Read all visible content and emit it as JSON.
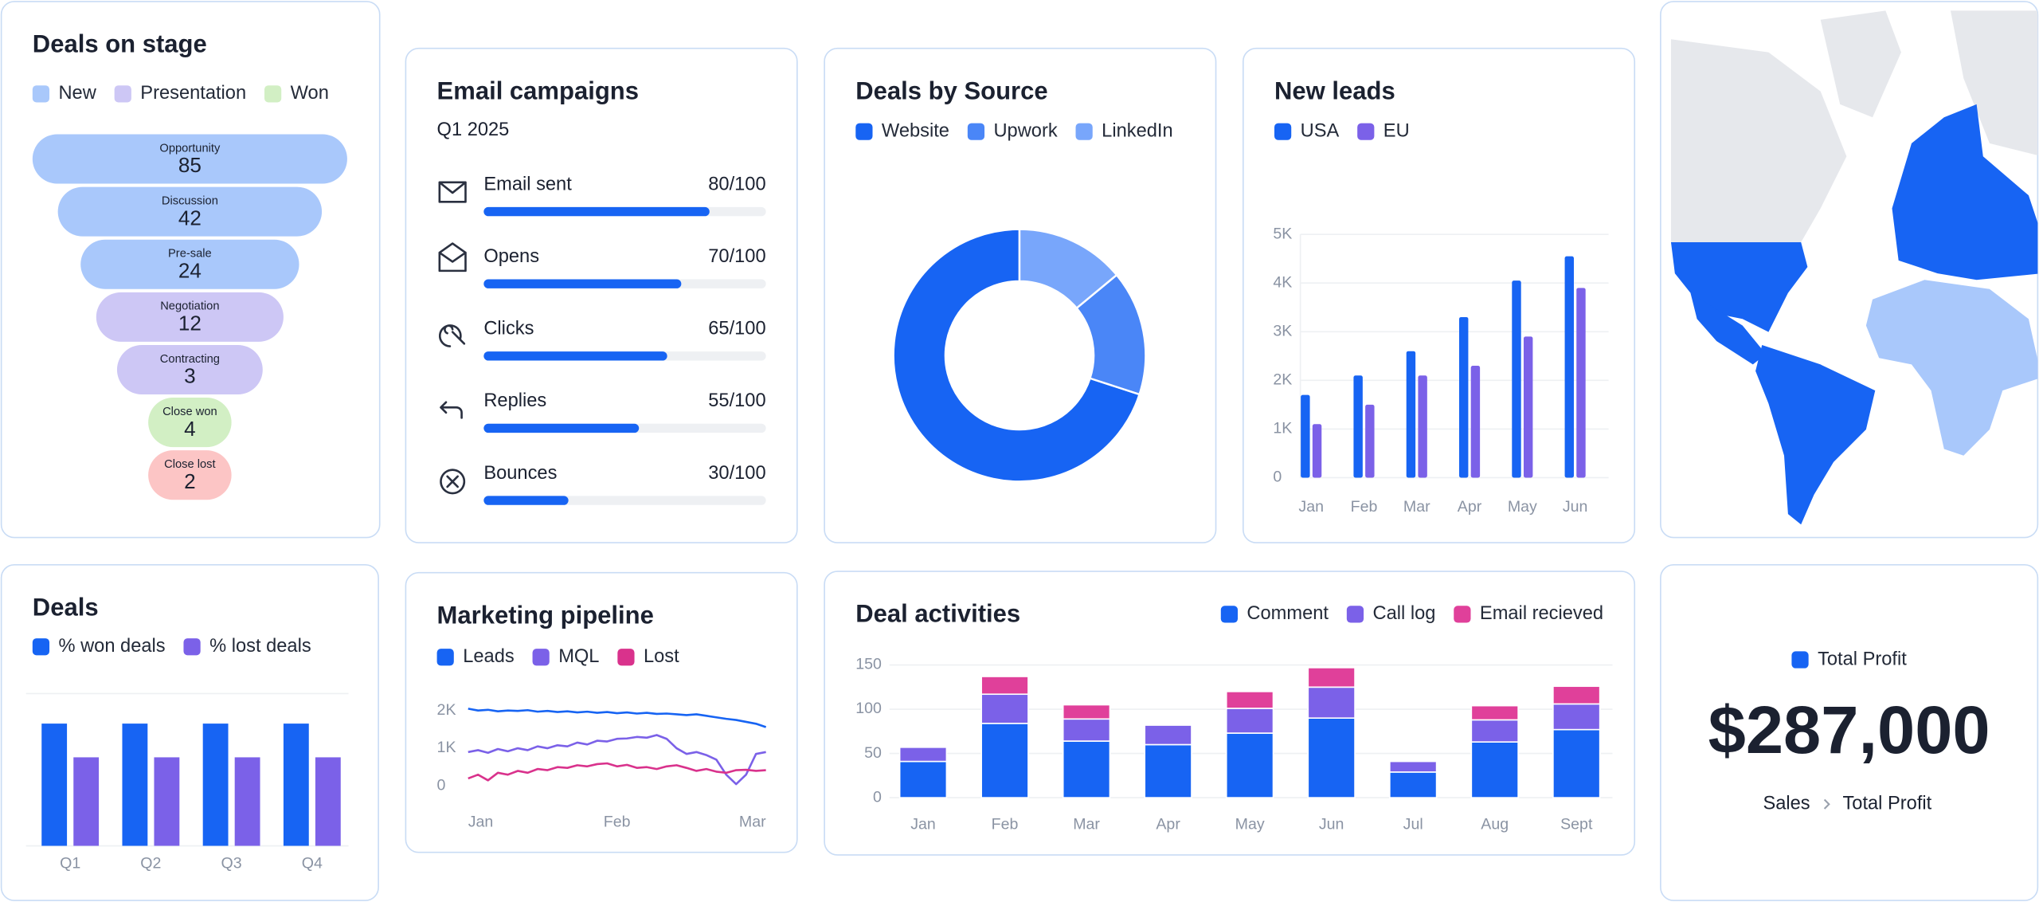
{
  "chart_data": [
    {
      "type": "funnel",
      "title": "Deals on stage",
      "legend": [
        {
          "name": "New",
          "color": "#a9c8fb"
        },
        {
          "name": "Presentation",
          "color": "#cdc7f5"
        },
        {
          "name": "Won",
          "color": "#d2efc4"
        }
      ],
      "categories": [
        "Opportunity",
        "Discussion",
        "Pre-sale",
        "Negotiation",
        "Contracting",
        "Close won",
        "Close lost"
      ],
      "values": [
        85,
        42,
        24,
        12,
        3,
        4,
        2
      ],
      "colors": [
        "#a9c8fb",
        "#a9c8fb",
        "#a9c8fb",
        "#cdc7f5",
        "#cdc7f5",
        "#d2efc4",
        "#fcc5c5"
      ]
    },
    {
      "type": "progress",
      "title": "Email campaigns",
      "subtitle": "Q1 2025",
      "categories": [
        "Email sent",
        "Opens",
        "Clicks",
        "Replies",
        "Bounces"
      ],
      "values": [
        80,
        70,
        65,
        55,
        30
      ],
      "xlim": [
        0,
        100
      ],
      "total_label": "/100",
      "color": "#1764f3"
    },
    {
      "type": "pie",
      "title": "Deals by Source",
      "donut": true,
      "categories": [
        "Website",
        "Upwork",
        "LinkedIn"
      ],
      "values": [
        70,
        16,
        14
      ],
      "colors": [
        "#1764f3",
        "#4a86f7",
        "#78a6fb"
      ]
    },
    {
      "type": "bar",
      "title": "New leads",
      "categories": [
        "Jan",
        "Feb",
        "Mar",
        "Apr",
        "May",
        "Jun"
      ],
      "series": [
        {
          "name": "USA",
          "color": "#1764f3",
          "values": [
            1700,
            2100,
            2600,
            3300,
            4050,
            4550
          ]
        },
        {
          "name": "EU",
          "color": "#7b61e8",
          "values": [
            1100,
            1500,
            2100,
            2300,
            2900,
            3900
          ]
        }
      ],
      "ylim": [
        0,
        5000
      ],
      "yticks": [
        0,
        {
          "value": 1000,
          "label": "1K"
        },
        {
          "value": 2000,
          "label": "2K"
        },
        {
          "value": 3000,
          "label": "3K"
        },
        {
          "value": 4000,
          "label": "4K"
        },
        {
          "value": 5000,
          "label": "5K"
        }
      ],
      "grid": true
    },
    {
      "type": "bar",
      "title": "Deals",
      "categories": [
        "Q1",
        "Q2",
        "Q3",
        "Q4"
      ],
      "series": [
        {
          "name": "% won deals",
          "color": "#1764f3",
          "values": [
            58,
            58,
            58,
            58
          ]
        },
        {
          "name": "% lost deals",
          "color": "#7b61e8",
          "values": [
            42,
            42,
            42,
            42
          ]
        }
      ]
    },
    {
      "type": "line",
      "title": "Marketing pipeline",
      "categories": [
        "Jan",
        null,
        null,
        null,
        null,
        null,
        null,
        null,
        null,
        null,
        null,
        null,
        null,
        null,
        null,
        "Feb",
        null,
        null,
        null,
        null,
        null,
        null,
        null,
        null,
        null,
        null,
        null,
        null,
        null,
        null,
        "Mar"
      ],
      "series": [
        {
          "name": "Leads",
          "color": "#1764f3",
          "values": [
            2050,
            2000,
            2020,
            1980,
            2000,
            1990,
            2010,
            1970,
            1990,
            1960,
            1980,
            1950,
            1970,
            1940,
            1960,
            1930,
            1950,
            1920,
            1940,
            1910,
            1920,
            1900,
            1880,
            1900,
            1860,
            1820,
            1780,
            1750,
            1700,
            1650,
            1560
          ]
        },
        {
          "name": "MQL",
          "color": "#7b61e8",
          "values": [
            900,
            950,
            880,
            980,
            920,
            1000,
            950,
            1050,
            1000,
            1080,
            1050,
            1150,
            1100,
            1200,
            1180,
            1250,
            1260,
            1300,
            1280,
            1350,
            1250,
            1000,
            850,
            900,
            820,
            700,
            300,
            50,
            300,
            850,
            900
          ]
        },
        {
          "name": "Lost",
          "color": "#d9328c",
          "values": [
            200,
            300,
            150,
            350,
            300,
            400,
            350,
            450,
            420,
            500,
            480,
            550,
            520,
            580,
            600,
            520,
            560,
            480,
            500,
            450,
            520,
            550,
            480,
            400,
            450,
            380,
            350,
            420,
            430,
            400,
            420
          ]
        }
      ],
      "ylim": [
        0,
        2000
      ],
      "yticks": [
        0,
        {
          "value": 1000,
          "label": "1K"
        },
        {
          "value": 2000,
          "label": "2K"
        }
      ]
    },
    {
      "type": "bar",
      "stacked": true,
      "title": "Deal activities",
      "categories": [
        "Jan",
        "Feb",
        "Mar",
        "Apr",
        "May",
        "Jun",
        "Jul",
        "Aug",
        "Sept"
      ],
      "series": [
        {
          "name": "Comment",
          "color": "#1764f3",
          "values": [
            41,
            84,
            64,
            60,
            73,
            90,
            29,
            63,
            77
          ]
        },
        {
          "name": "Call log",
          "color": "#7b61e8",
          "values": [
            16,
            33,
            25,
            22,
            28,
            35,
            12,
            25,
            29
          ]
        },
        {
          "name": "Email recieved",
          "color": "#e0409a",
          "values": [
            0,
            20,
            16,
            0,
            19,
            22,
            0,
            16,
            20
          ]
        }
      ],
      "ylim": [
        0,
        150
      ],
      "yticks": [
        0,
        50,
        100,
        150
      ],
      "grid": true
    },
    {
      "type": "kpi",
      "legend": "Total Profit",
      "color": "#1764f3",
      "values": [
        287000
      ],
      "value_labels": [
        "$287,000"
      ],
      "breadcrumb": [
        "Sales",
        "Total Profit"
      ]
    }
  ]
}
